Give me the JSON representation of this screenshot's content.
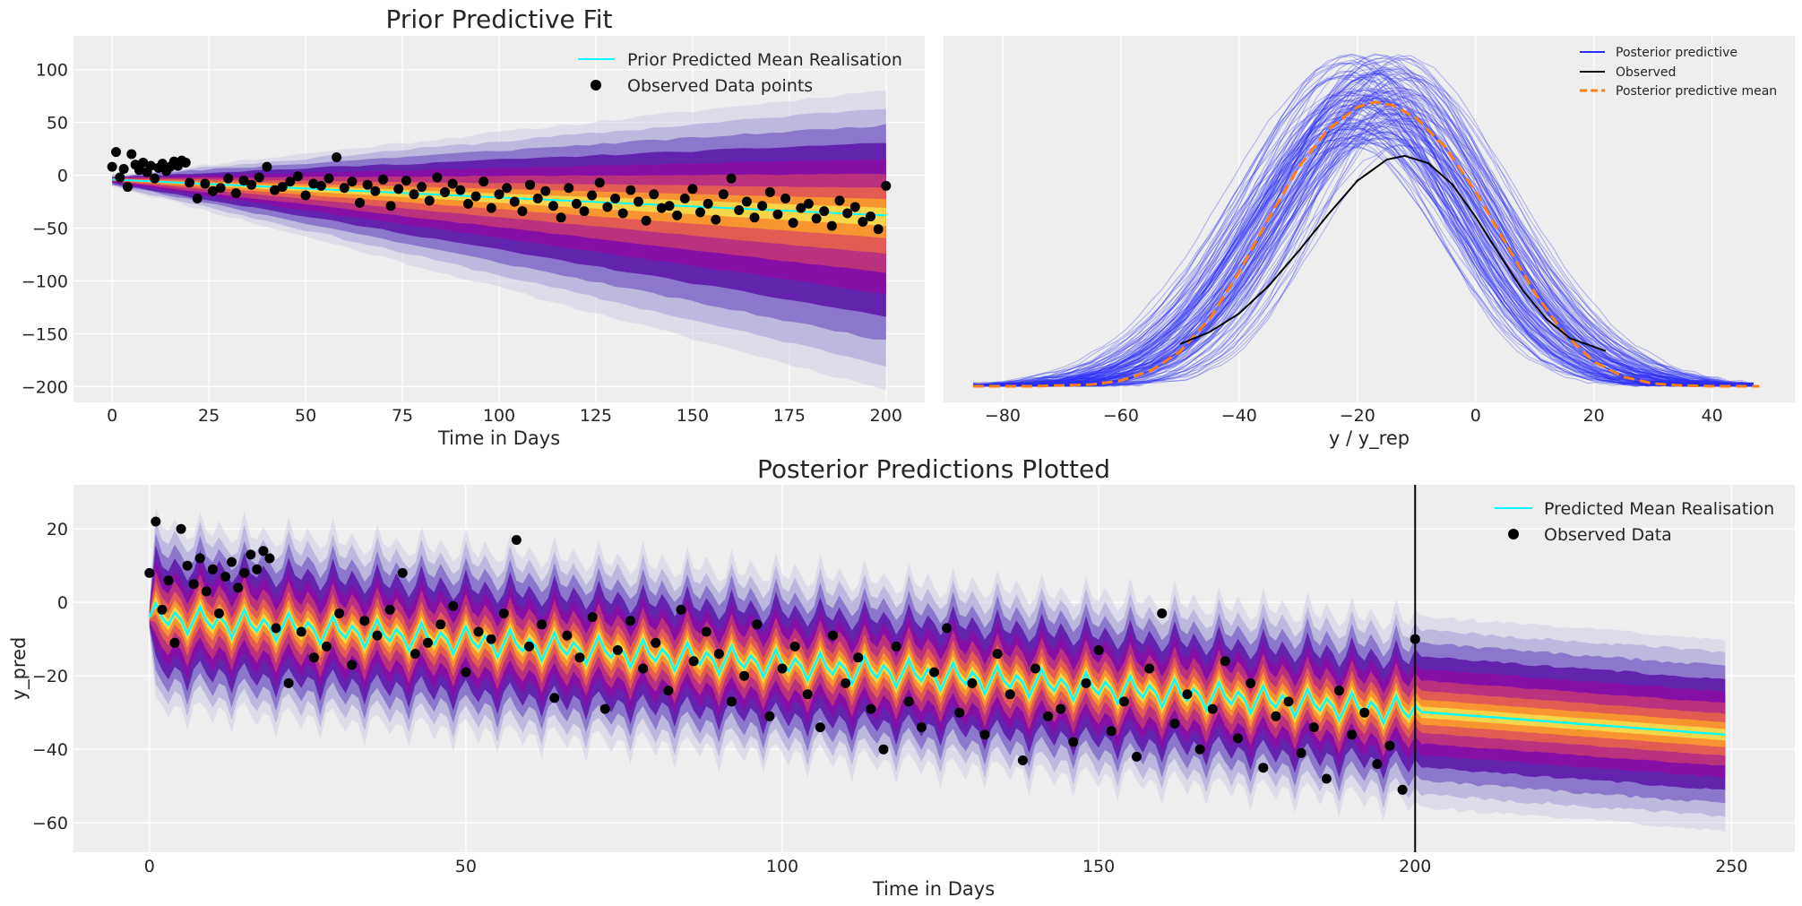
{
  "colors": {
    "panel_bg": "#eeeeee",
    "grid": "#ffffff",
    "mean_line": "#00ffff",
    "observed": "#000000",
    "ppc_draws": "#2a2ef5",
    "ppc_mean": "#ff7f0e",
    "hdi_palette": [
      "#cfcde6",
      "#a8a0d6",
      "#7b62c4",
      "#5a14a8",
      "#8a0da3",
      "#c0357a",
      "#e8624f",
      "#fb9b2c",
      "#f5d94a"
    ]
  },
  "chart_data": [
    {
      "id": "prior",
      "type": "line",
      "title": "Prior Predictive Fit",
      "xlabel": "Time in Days",
      "ylabel": "",
      "xlim": [
        -10,
        210
      ],
      "ylim": [
        -215,
        132
      ],
      "xticks": [
        0,
        25,
        50,
        75,
        100,
        125,
        150,
        175,
        200
      ],
      "yticks": [
        -200,
        -150,
        -100,
        -50,
        0,
        50,
        100
      ],
      "legend": {
        "placement": "upper-right",
        "entries": [
          "Prior Predicted Mean Realisation",
          "Observed Data points"
        ]
      },
      "series": [
        {
          "name": "Prior Predicted Mean Realisation",
          "x": [
            0,
            200
          ],
          "y": [
            -4,
            -38
          ]
        },
        {
          "name": "Observed Data points",
          "x": [
            0,
            1,
            2,
            3,
            4,
            5,
            6,
            7,
            8,
            9,
            10,
            11,
            12,
            13,
            14,
            15,
            16,
            17,
            18,
            19,
            20,
            22,
            24,
            26,
            28,
            30,
            32,
            34,
            36,
            38,
            40,
            42,
            44,
            46,
            48,
            50,
            52,
            54,
            56,
            58,
            60,
            62,
            64,
            66,
            68,
            70,
            72,
            74,
            76,
            78,
            80,
            82,
            84,
            86,
            88,
            90,
            92,
            94,
            96,
            98,
            100,
            102,
            104,
            106,
            108,
            110,
            112,
            114,
            116,
            118,
            120,
            122,
            124,
            126,
            128,
            130,
            132,
            134,
            136,
            138,
            140,
            142,
            144,
            146,
            148,
            150,
            152,
            154,
            156,
            158,
            160,
            162,
            164,
            166,
            168,
            170,
            172,
            174,
            176,
            178,
            180,
            182,
            184,
            186,
            188,
            190,
            192,
            194,
            196,
            198,
            200
          ],
          "y": [
            8,
            22,
            -2,
            6,
            -11,
            20,
            10,
            5,
            12,
            3,
            9,
            -3,
            7,
            11,
            4,
            8,
            13,
            9,
            14,
            12,
            -7,
            -22,
            -8,
            -15,
            -12,
            -3,
            -17,
            -5,
            -9,
            -2,
            8,
            -14,
            -11,
            -6,
            -1,
            -19,
            -8,
            -10,
            -3,
            17,
            -12,
            -6,
            -26,
            -9,
            -15,
            -4,
            -29,
            -13,
            -5,
            -18,
            -11,
            -24,
            -2,
            -16,
            -8,
            -14,
            -27,
            -20,
            -6,
            -31,
            -18,
            -12,
            -25,
            -34,
            -9,
            -22,
            -15,
            -29,
            -40,
            -12,
            -27,
            -34,
            -19,
            -7,
            -30,
            -22,
            -36,
            -14,
            -25,
            -43,
            -18,
            -31,
            -29,
            -38,
            -22,
            -13,
            -35,
            -27,
            -42,
            -18,
            -3,
            -33,
            -25,
            -40,
            -29,
            -16,
            -37,
            -22,
            -45,
            -31,
            -27,
            -41,
            -34,
            -48,
            -24,
            -36,
            -30,
            -44,
            -39,
            -51,
            -10
          ]
        }
      ],
      "band": {
        "center_start": -4,
        "center_end": -38,
        "halfwidth_start": 6,
        "halfwidth_end": 165
      }
    },
    {
      "id": "ppc",
      "type": "line",
      "title": "",
      "xlabel": "y / y_rep",
      "ylabel": "",
      "xlim": [
        -90,
        54
      ],
      "ylim": [
        0,
        1
      ],
      "xticks": [
        -80,
        -60,
        -40,
        -20,
        0,
        20,
        40
      ],
      "yticks": [],
      "legend": {
        "placement": "upper-right",
        "entries": [
          "Posterior predictive",
          "Observed",
          "Posterior predictive mean"
        ]
      },
      "series": [
        {
          "name": "Observed",
          "x": [
            -50,
            -45,
            -40,
            -35,
            -30,
            -25,
            -20,
            -15,
            -12,
            -8,
            -4,
            0,
            4,
            8,
            12,
            16,
            22
          ],
          "y": [
            0.127,
            0.163,
            0.219,
            0.302,
            0.405,
            0.515,
            0.618,
            0.682,
            0.693,
            0.671,
            0.608,
            0.509,
            0.397,
            0.288,
            0.202,
            0.144,
            0.106
          ]
        },
        {
          "name": "Posterior predictive mean",
          "x": [
            -85,
            -75,
            -65,
            -60,
            -55,
            -50,
            -45,
            -40,
            -35,
            -30,
            -25,
            -20,
            -17,
            -14,
            -10,
            -5,
            0,
            5,
            10,
            15,
            20,
            25,
            30,
            35,
            40,
            48
          ],
          "y": [
            0.0,
            0.0,
            0.005,
            0.017,
            0.046,
            0.104,
            0.203,
            0.343,
            0.505,
            0.657,
            0.772,
            0.84,
            0.855,
            0.845,
            0.806,
            0.716,
            0.585,
            0.433,
            0.281,
            0.158,
            0.074,
            0.028,
            0.008,
            0.002,
            0.0,
            0.0
          ]
        },
        {
          "name": "Posterior predictive",
          "x": [
            -85,
            48
          ],
          "y": [
            0,
            0
          ]
        }
      ]
    },
    {
      "id": "posterior",
      "type": "line",
      "title": "Posterior Predictions Plotted",
      "xlabel": "Time in Days",
      "ylabel": "y_pred",
      "xlim": [
        -12,
        260
      ],
      "ylim": [
        -68,
        32
      ],
      "xticks": [
        0,
        50,
        100,
        150,
        200,
        250
      ],
      "yticks": [
        -60,
        -40,
        -20,
        0,
        20
      ],
      "vline_x": 200,
      "legend": {
        "placement": "upper-right",
        "entries": [
          "Predicted Mean Realisation",
          "Observed Data"
        ]
      },
      "series": [
        {
          "name": "Predicted Mean Realisation",
          "x_start": 0,
          "x_end": 249,
          "forecast_start": 200,
          "y_start": -4,
          "y_end": -36
        },
        {
          "name": "Observed Data",
          "x": [
            0,
            1,
            2,
            3,
            4,
            5,
            6,
            7,
            8,
            9,
            10,
            11,
            12,
            13,
            14,
            15,
            16,
            17,
            18,
            19,
            20,
            22,
            24,
            26,
            28,
            30,
            32,
            34,
            36,
            38,
            40,
            42,
            44,
            46,
            48,
            50,
            52,
            54,
            56,
            58,
            60,
            62,
            64,
            66,
            68,
            70,
            72,
            74,
            76,
            78,
            80,
            82,
            84,
            86,
            88,
            90,
            92,
            94,
            96,
            98,
            100,
            102,
            104,
            106,
            108,
            110,
            112,
            114,
            116,
            118,
            120,
            122,
            124,
            126,
            128,
            130,
            132,
            134,
            136,
            138,
            140,
            142,
            144,
            146,
            148,
            150,
            152,
            154,
            156,
            158,
            160,
            162,
            164,
            166,
            168,
            170,
            172,
            174,
            176,
            178,
            180,
            182,
            184,
            186,
            188,
            190,
            192,
            194,
            196,
            198,
            200
          ],
          "y": [
            8,
            22,
            -2,
            6,
            -11,
            20,
            10,
            5,
            12,
            3,
            9,
            -3,
            7,
            11,
            4,
            8,
            13,
            9,
            14,
            12,
            -7,
            -22,
            -8,
            -15,
            -12,
            -3,
            -17,
            -5,
            -9,
            -2,
            8,
            -14,
            -11,
            -6,
            -1,
            -19,
            -8,
            -10,
            -3,
            17,
            -12,
            -6,
            -26,
            -9,
            -15,
            -4,
            -29,
            -13,
            -5,
            -18,
            -11,
            -24,
            -2,
            -16,
            -8,
            -14,
            -27,
            -20,
            -6,
            -31,
            -18,
            -12,
            -25,
            -34,
            -9,
            -22,
            -15,
            -29,
            -40,
            -12,
            -27,
            -34,
            -19,
            -7,
            -30,
            -22,
            -36,
            -14,
            -25,
            -43,
            -18,
            -31,
            -29,
            -38,
            -22,
            -13,
            -35,
            -27,
            -42,
            -18,
            -3,
            -33,
            -25,
            -40,
            -29,
            -16,
            -37,
            -22,
            -45,
            -31,
            -27,
            -41,
            -34,
            -48,
            -24,
            -36,
            -30,
            -44,
            -39,
            -51,
            -10
          ]
        }
      ]
    }
  ]
}
